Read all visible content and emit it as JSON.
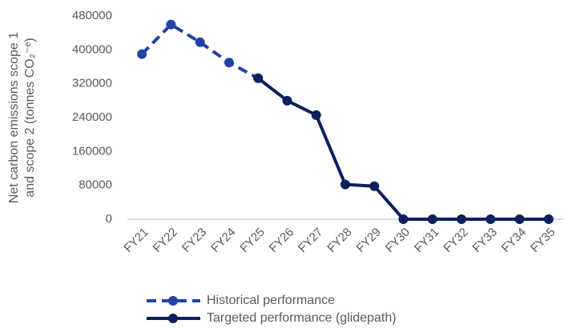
{
  "chart_data": {
    "type": "line",
    "y_label": [
      "Net carbon emissions scope 1",
      "and scope 2 (tonnes CO₂⁻ᵉ)"
    ],
    "categories": [
      "FY21",
      "FY22",
      "FY23",
      "FY24",
      "FY25",
      "FY26",
      "FY27",
      "FY28",
      "FY29",
      "FY30",
      "FY31",
      "FY32",
      "FY33",
      "FY34",
      "FY35"
    ],
    "series": [
      {
        "name": "Historical performance",
        "color": "#2340a8",
        "dash": true,
        "values": [
          390000,
          460000,
          418000,
          370000,
          333000,
          null,
          null,
          null,
          null,
          null,
          null,
          null,
          null,
          null,
          null
        ]
      },
      {
        "name": "Targeted performance (glidepath)",
        "color": "#0d1f5c",
        "dash": false,
        "values": [
          null,
          null,
          null,
          null,
          333000,
          280000,
          246000,
          82000,
          78000,
          0,
          0,
          0,
          0,
          0,
          0
        ]
      }
    ],
    "ylim": [
      0,
      480000
    ],
    "yticks": [
      0,
      80000,
      160000,
      240000,
      320000,
      400000,
      480000
    ],
    "grid": false,
    "legend": "bottom"
  }
}
